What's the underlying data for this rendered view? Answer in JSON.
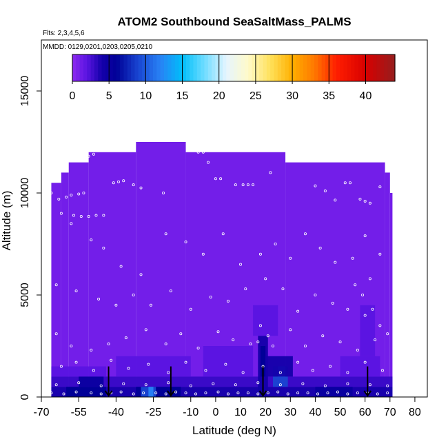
{
  "chart_data": {
    "type": "heatmap",
    "title": "ATOM2 Southbound SeaSaltMass_PALMS",
    "subtitle": "Flts: 2,3,4,5,6",
    "annotation": "MMDD: 0129,0201,0203,0205,0210",
    "xlabel": "Latitude (deg N)",
    "ylabel": "Altitude (m)",
    "xlim": [
      -70,
      85
    ],
    "ylim": [
      0,
      17500
    ],
    "x_ticks": [
      -70,
      -55,
      -40,
      -25,
      -10,
      0,
      10,
      20,
      30,
      40,
      50,
      60,
      70,
      80
    ],
    "x_tick_labels": [
      "-70",
      "-55",
      "-40",
      "-25",
      "-10",
      "0",
      "10",
      "20",
      "30",
      "40",
      "50",
      "60",
      "70",
      "80"
    ],
    "y_ticks": [
      0,
      5000,
      10000,
      15000
    ],
    "y_tick_labels": [
      "0",
      "5000",
      "10000",
      "15000"
    ],
    "colorbar": {
      "min": 0,
      "max": 44,
      "ticks": [
        0,
        5,
        10,
        15,
        20,
        25,
        30,
        35,
        40
      ],
      "tick_labels": [
        "0",
        "5",
        "10",
        "15",
        "20",
        "25",
        "30",
        "35",
        "40"
      ]
    },
    "background_value": 1,
    "coverage": [
      {
        "x0": -66,
        "x1": -62,
        "top": 10500
      },
      {
        "x0": -62,
        "x1": -59,
        "top": 11000
      },
      {
        "x0": -59,
        "x1": -51,
        "top": 11500
      },
      {
        "x0": -51,
        "x1": -32,
        "top": 12000
      },
      {
        "x0": -32,
        "x1": -12,
        "top": 12500
      },
      {
        "x0": -12,
        "x1": 28,
        "top": 12000
      },
      {
        "x0": 28,
        "x1": 68,
        "top": 11500
      },
      {
        "x0": 68,
        "x1": 70,
        "top": 11000
      },
      {
        "x0": 70,
        "x1": 71,
        "top": 10000
      }
    ],
    "cells": [
      {
        "x0": -66,
        "x1": 71,
        "y0": 0,
        "y1": 500,
        "v": 4
      },
      {
        "x0": -66,
        "x1": 71,
        "y0": 500,
        "y1": 1000,
        "v": 3
      },
      {
        "x0": -60,
        "x1": -44,
        "y0": 0,
        "y1": 500,
        "v": 6
      },
      {
        "x0": -32,
        "x1": -14,
        "y0": 0,
        "y1": 500,
        "v": 6
      },
      {
        "x0": -30,
        "x1": -24,
        "y0": 0,
        "y1": 500,
        "v": 9
      },
      {
        "x0": -27,
        "x1": -25,
        "y0": 0,
        "y1": 500,
        "v": 12
      },
      {
        "x0": 23,
        "x1": 29,
        "y0": 500,
        "y1": 1500,
        "v": 9
      },
      {
        "x0": 25,
        "x1": 28,
        "y0": 1000,
        "y1": 1500,
        "v": 13
      },
      {
        "x0": 17,
        "x1": 21,
        "y0": 0,
        "y1": 3000,
        "v": 4
      },
      {
        "x0": 18,
        "x1": 20,
        "y0": 1000,
        "y1": 2500,
        "v": 6
      },
      {
        "x0": 20,
        "x1": 31,
        "y0": 1000,
        "y1": 2000,
        "v": 4
      },
      {
        "x0": -66,
        "x1": -44,
        "y0": 1000,
        "y1": 1500,
        "v": 2
      },
      {
        "x0": -40,
        "x1": -10,
        "y0": 1000,
        "y1": 2000,
        "v": 2
      },
      {
        "x0": -5,
        "x1": 15,
        "y0": 1000,
        "y1": 2500,
        "v": 2
      },
      {
        "x0": 15,
        "x1": 25,
        "y0": 3000,
        "y1": 4500,
        "v": 2
      },
      {
        "x0": 50,
        "x1": 66,
        "y0": 1000,
        "y1": 2000,
        "v": 2
      },
      {
        "x0": 58,
        "x1": 64,
        "y0": 2000,
        "y1": 4500,
        "v": 2
      },
      {
        "x0": -55,
        "x1": -45,
        "y0": 500,
        "y1": 1000,
        "v": 5
      },
      {
        "x0": 40,
        "x1": 55,
        "y0": 0,
        "y1": 500,
        "v": 5
      }
    ],
    "sample_points": [
      [
        -66,
        10000
      ],
      [
        -63,
        9700
      ],
      [
        -60,
        9800
      ],
      [
        -58,
        9900
      ],
      [
        -55,
        9950
      ],
      [
        -53,
        10000
      ],
      [
        -57,
        8900
      ],
      [
        -54,
        8850
      ],
      [
        -51,
        8850
      ],
      [
        -48,
        8900
      ],
      [
        -45,
        8900
      ],
      [
        -51,
        11800
      ],
      [
        -49,
        11900
      ],
      [
        -47,
        12100
      ],
      [
        -45,
        12200
      ],
      [
        -43,
        12350
      ],
      [
        -41,
        10500
      ],
      [
        -39,
        10550
      ],
      [
        -37,
        10600
      ],
      [
        -33,
        10400
      ],
      [
        -30,
        10250
      ],
      [
        -21,
        10000
      ],
      [
        -7,
        12000
      ],
      [
        -5,
        12000
      ],
      [
        -3,
        11500
      ],
      [
        0,
        10700
      ],
      [
        2,
        10700
      ],
      [
        8,
        10400
      ],
      [
        11,
        10400
      ],
      [
        13,
        10400
      ],
      [
        15,
        10400
      ],
      [
        22,
        11000
      ],
      [
        40,
        10350
      ],
      [
        44,
        10100
      ],
      [
        48,
        9650
      ],
      [
        52,
        10500
      ],
      [
        54,
        10500
      ],
      [
        58,
        9700
      ],
      [
        60,
        9600
      ],
      [
        62,
        9500
      ],
      [
        66,
        10300
      ],
      [
        -62,
        9000
      ],
      [
        -58,
        8500
      ],
      [
        -50,
        7700
      ],
      [
        -45,
        7300
      ],
      [
        -38,
        6400
      ],
      [
        -30,
        6000
      ],
      [
        -20,
        8000
      ],
      [
        -12,
        7600
      ],
      [
        -5,
        7000
      ],
      [
        3,
        8000
      ],
      [
        10,
        6500
      ],
      [
        18,
        7000
      ],
      [
        24,
        7500
      ],
      [
        30,
        6800
      ],
      [
        36,
        8000
      ],
      [
        42,
        7300
      ],
      [
        48,
        6600
      ],
      [
        55,
        6800
      ],
      [
        60,
        7900
      ],
      [
        66,
        7000
      ],
      [
        -64,
        5500
      ],
      [
        -56,
        5200
      ],
      [
        -47,
        4800
      ],
      [
        -40,
        4500
      ],
      [
        -33,
        5000
      ],
      [
        -26,
        4500
      ],
      [
        -18,
        5200
      ],
      [
        -10,
        4300
      ],
      [
        -2,
        4900
      ],
      [
        5,
        4700
      ],
      [
        12,
        5300
      ],
      [
        20,
        5800
      ],
      [
        27,
        5300
      ],
      [
        33,
        4200
      ],
      [
        40,
        5000
      ],
      [
        47,
        4600
      ],
      [
        53,
        4300
      ],
      [
        60,
        4000
      ],
      [
        66,
        3500
      ],
      [
        63,
        4300
      ],
      [
        59,
        5000
      ],
      [
        56,
        5500
      ],
      [
        62,
        5800
      ],
      [
        -64,
        3100
      ],
      [
        -58,
        2500
      ],
      [
        -50,
        2300
      ],
      [
        -43,
        2600
      ],
      [
        -36,
        2900
      ],
      [
        -28,
        3300
      ],
      [
        -20,
        2600
      ],
      [
        -14,
        3100
      ],
      [
        -7,
        2400
      ],
      [
        1,
        3200
      ],
      [
        7,
        2800
      ],
      [
        14,
        2600
      ],
      [
        21,
        3000
      ],
      [
        18,
        3500
      ],
      [
        17,
        2700
      ],
      [
        23,
        2500
      ],
      [
        30,
        3300
      ],
      [
        36,
        2500
      ],
      [
        43,
        3000
      ],
      [
        50,
        2700
      ],
      [
        57,
        2300
      ],
      [
        64,
        2800
      ],
      [
        69,
        3100
      ],
      [
        -62,
        1500
      ],
      [
        -56,
        1700
      ],
      [
        -49,
        1300
      ],
      [
        -42,
        1800
      ],
      [
        -35,
        1400
      ],
      [
        -27,
        1600
      ],
      [
        -19,
        1200
      ],
      [
        -12,
        1700
      ],
      [
        -4,
        1300
      ],
      [
        4,
        1600
      ],
      [
        11,
        1200
      ],
      [
        19,
        1500
      ],
      [
        26,
        1200
      ],
      [
        33,
        1700
      ],
      [
        39,
        1300
      ],
      [
        46,
        1500
      ],
      [
        53,
        1200
      ],
      [
        60,
        1700
      ],
      [
        67,
        1300
      ],
      [
        -66,
        200
      ],
      [
        -61,
        150
      ],
      [
        -56,
        250
      ],
      [
        -50,
        200
      ],
      [
        -46,
        150
      ],
      [
        -42,
        200
      ],
      [
        -38,
        250
      ],
      [
        -33,
        150
      ],
      [
        -29,
        200
      ],
      [
        -24,
        200
      ],
      [
        -20,
        150
      ],
      [
        -16,
        250
      ],
      [
        -12,
        200
      ],
      [
        -8,
        150
      ],
      [
        -4,
        200
      ],
      [
        1,
        250
      ],
      [
        5,
        150
      ],
      [
        9,
        200
      ],
      [
        13,
        200
      ],
      [
        17,
        150
      ],
      [
        21,
        200
      ],
      [
        25,
        250
      ],
      [
        29,
        150
      ],
      [
        33,
        200
      ],
      [
        37,
        200
      ],
      [
        41,
        150
      ],
      [
        45,
        200
      ],
      [
        49,
        250
      ],
      [
        53,
        150
      ],
      [
        57,
        200
      ],
      [
        61,
        200
      ],
      [
        65,
        150
      ],
      [
        69,
        200
      ],
      [
        -64,
        600
      ],
      [
        -55,
        700
      ],
      [
        -46,
        550
      ],
      [
        -37,
        650
      ],
      [
        -28,
        600
      ],
      [
        -19,
        700
      ],
      [
        -10,
        550
      ],
      [
        -1,
        650
      ],
      [
        8,
        600
      ],
      [
        17,
        700
      ],
      [
        26,
        600
      ],
      [
        35,
        650
      ],
      [
        44,
        550
      ],
      [
        53,
        650
      ],
      [
        62,
        600
      ],
      [
        69,
        550
      ]
    ],
    "arrows_latitude": [
      -43,
      -18,
      19,
      61
    ]
  }
}
